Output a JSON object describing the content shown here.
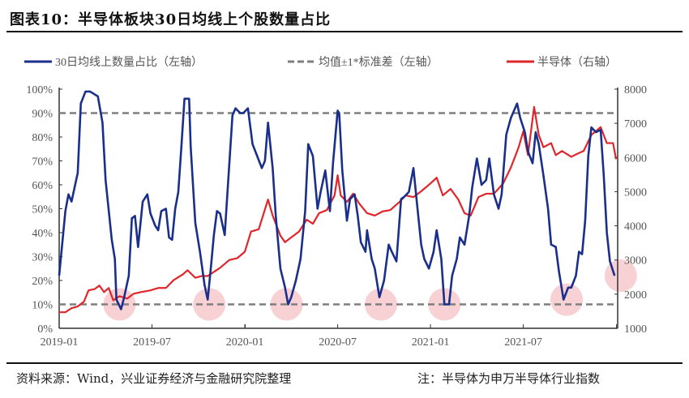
{
  "title": "图表10：半导体板块30日均线上个股数量占比",
  "footer": {
    "source": "资料来源：Wind，兴业证券经济与金融研究院整理",
    "note": "注：半导体为申万半导体行业指数"
  },
  "chart_data": {
    "type": "line",
    "title": "半导体板块30日均线上个股数量占比",
    "x_unit": "months since 2019-01",
    "xlim": [
      0,
      36.1
    ],
    "x_ticks": [
      {
        "v": 0,
        "label": "2019-01"
      },
      {
        "v": 6,
        "label": "2019-07"
      },
      {
        "v": 12,
        "label": "2020-01"
      },
      {
        "v": 18,
        "label": "2020-07"
      },
      {
        "v": 24,
        "label": "2021-01"
      },
      {
        "v": 30,
        "label": "2021-07"
      }
    ],
    "y_left": {
      "lim": [
        0,
        100
      ],
      "ticks": [
        "0%",
        "10%",
        "20%",
        "30%",
        "40%",
        "50%",
        "60%",
        "70%",
        "80%",
        "90%",
        "100%"
      ]
    },
    "y_right": {
      "lim": [
        1000,
        8000
      ],
      "ticks": [
        "1000",
        "2000",
        "3000",
        "4000",
        "5000",
        "6000",
        "7000",
        "8000"
      ]
    },
    "legend_position": "top",
    "series": [
      {
        "name": "30日均线上数量占比（左轴）",
        "axis": "left",
        "color": "#1a2f8a",
        "style": "solid",
        "points": [
          [
            0,
            22
          ],
          [
            0.4,
            49
          ],
          [
            0.6,
            56
          ],
          [
            0.8,
            53
          ],
          [
            1.2,
            65
          ],
          [
            1.4,
            94
          ],
          [
            1.7,
            99
          ],
          [
            2.0,
            99
          ],
          [
            2.5,
            97
          ],
          [
            2.8,
            86
          ],
          [
            3.0,
            62
          ],
          [
            3.4,
            37
          ],
          [
            3.6,
            29
          ],
          [
            3.7,
            12
          ],
          [
            4.0,
            8
          ],
          [
            4.2,
            13
          ],
          [
            4.5,
            22
          ],
          [
            4.7,
            46
          ],
          [
            4.9,
            47
          ],
          [
            5.1,
            34
          ],
          [
            5.4,
            53
          ],
          [
            5.7,
            56
          ],
          [
            5.9,
            48
          ],
          [
            6.2,
            43
          ],
          [
            6.4,
            41
          ],
          [
            6.6,
            49
          ],
          [
            6.9,
            50
          ],
          [
            7.1,
            38
          ],
          [
            7.3,
            37
          ],
          [
            7.5,
            50
          ],
          [
            7.7,
            57
          ],
          [
            7.9,
            76
          ],
          [
            8.1,
            96
          ],
          [
            8.4,
            96
          ],
          [
            8.5,
            76
          ],
          [
            8.8,
            44
          ],
          [
            9.1,
            32
          ],
          [
            9.4,
            18
          ],
          [
            9.6,
            12
          ],
          [
            9.8,
            25
          ],
          [
            10.0,
            39
          ],
          [
            10.2,
            49
          ],
          [
            10.4,
            48
          ],
          [
            10.7,
            39
          ],
          [
            11.0,
            69
          ],
          [
            11.2,
            89
          ],
          [
            11.4,
            92
          ],
          [
            11.7,
            90
          ],
          [
            11.9,
            90
          ],
          [
            12.2,
            92
          ],
          [
            12.5,
            77
          ],
          [
            12.8,
            72
          ],
          [
            13.1,
            67
          ],
          [
            13.3,
            70
          ],
          [
            13.5,
            86
          ],
          [
            13.8,
            67
          ],
          [
            14.0,
            47
          ],
          [
            14.3,
            25
          ],
          [
            14.6,
            17
          ],
          [
            14.8,
            10
          ],
          [
            15.0,
            13
          ],
          [
            15.3,
            20
          ],
          [
            15.6,
            29
          ],
          [
            15.9,
            49
          ],
          [
            16.1,
            77
          ],
          [
            16.4,
            72
          ],
          [
            16.7,
            50
          ],
          [
            16.9,
            57
          ],
          [
            17.2,
            66
          ],
          [
            17.5,
            49
          ],
          [
            17.7,
            69
          ],
          [
            18.0,
            91
          ],
          [
            18.1,
            90
          ],
          [
            18.3,
            66
          ],
          [
            18.6,
            45
          ],
          [
            18.8,
            54
          ],
          [
            19.1,
            56
          ],
          [
            19.3,
            47
          ],
          [
            19.5,
            36
          ],
          [
            19.8,
            32
          ],
          [
            19.9,
            41
          ],
          [
            20.2,
            29
          ],
          [
            20.4,
            25
          ],
          [
            20.7,
            13
          ],
          [
            21.0,
            20
          ],
          [
            21.3,
            35
          ],
          [
            21.5,
            32
          ],
          [
            21.8,
            28
          ],
          [
            22.1,
            54
          ],
          [
            22.3,
            55
          ],
          [
            22.6,
            57
          ],
          [
            22.9,
            67
          ],
          [
            23.1,
            54
          ],
          [
            23.4,
            35
          ],
          [
            23.6,
            29
          ],
          [
            23.9,
            25
          ],
          [
            24.2,
            32
          ],
          [
            24.4,
            41
          ],
          [
            24.7,
            29
          ],
          [
            24.9,
            10
          ],
          [
            25.2,
            10
          ],
          [
            25.4,
            22
          ],
          [
            25.7,
            29
          ],
          [
            25.9,
            38
          ],
          [
            26.2,
            35
          ],
          [
            26.5,
            47
          ],
          [
            26.7,
            59
          ],
          [
            27.0,
            71
          ],
          [
            27.3,
            60
          ],
          [
            27.6,
            62
          ],
          [
            27.8,
            71
          ],
          [
            28.1,
            56
          ],
          [
            28.4,
            50
          ],
          [
            28.6,
            56
          ],
          [
            28.9,
            81
          ],
          [
            29.2,
            88
          ],
          [
            29.6,
            94
          ],
          [
            29.8,
            88
          ],
          [
            30.1,
            82
          ],
          [
            30.3,
            74
          ],
          [
            30.6,
            69
          ],
          [
            30.8,
            82
          ],
          [
            31.0,
            77
          ],
          [
            31.3,
            64
          ],
          [
            31.6,
            50
          ],
          [
            31.8,
            35
          ],
          [
            32.1,
            34
          ],
          [
            32.3,
            24
          ],
          [
            32.6,
            12
          ],
          [
            32.9,
            17
          ],
          [
            33.1,
            17
          ],
          [
            33.4,
            22
          ],
          [
            33.6,
            32
          ],
          [
            33.8,
            31
          ],
          [
            34.0,
            45
          ],
          [
            34.2,
            72
          ],
          [
            34.4,
            84
          ],
          [
            34.7,
            82
          ],
          [
            35.0,
            83
          ],
          [
            35.2,
            64
          ],
          [
            35.4,
            40
          ],
          [
            35.6,
            28
          ],
          [
            35.9,
            22
          ]
        ]
      },
      {
        "name": "均值±1*标准差（左轴）",
        "axis": "left",
        "color": "#7f7f7f",
        "style": "dashed",
        "values": [
          90,
          10
        ]
      },
      {
        "name": "半导体（右轴）",
        "axis": "right",
        "color": "#e0262b",
        "style": "solid",
        "points": [
          [
            0,
            1470
          ],
          [
            0.4,
            1470
          ],
          [
            0.8,
            1590
          ],
          [
            1.2,
            1640
          ],
          [
            1.6,
            1780
          ],
          [
            1.9,
            2110
          ],
          [
            2.3,
            2150
          ],
          [
            2.6,
            2250
          ],
          [
            2.9,
            2060
          ],
          [
            3.2,
            2180
          ],
          [
            3.5,
            1820
          ],
          [
            3.9,
            1940
          ],
          [
            4.4,
            1870
          ],
          [
            4.8,
            2010
          ],
          [
            5.3,
            2060
          ],
          [
            5.9,
            2110
          ],
          [
            6.4,
            2180
          ],
          [
            6.9,
            2180
          ],
          [
            7.4,
            2410
          ],
          [
            8.0,
            2580
          ],
          [
            8.3,
            2700
          ],
          [
            8.8,
            2480
          ],
          [
            9.2,
            2530
          ],
          [
            9.6,
            2530
          ],
          [
            10.0,
            2650
          ],
          [
            10.4,
            2770
          ],
          [
            11.0,
            3000
          ],
          [
            11.5,
            3050
          ],
          [
            12.0,
            3240
          ],
          [
            12.4,
            3830
          ],
          [
            12.9,
            3900
          ],
          [
            13.5,
            4770
          ],
          [
            13.8,
            4300
          ],
          [
            14.3,
            3710
          ],
          [
            14.6,
            3520
          ],
          [
            15.0,
            3660
          ],
          [
            15.5,
            3830
          ],
          [
            16.0,
            4180
          ],
          [
            16.4,
            4060
          ],
          [
            16.8,
            4370
          ],
          [
            17.3,
            4460
          ],
          [
            17.8,
            4890
          ],
          [
            18.0,
            5480
          ],
          [
            18.2,
            4890
          ],
          [
            18.6,
            4700
          ],
          [
            19.0,
            4940
          ],
          [
            19.4,
            4650
          ],
          [
            19.9,
            4370
          ],
          [
            20.4,
            4300
          ],
          [
            20.9,
            4420
          ],
          [
            21.4,
            4460
          ],
          [
            22.0,
            4700
          ],
          [
            22.4,
            4890
          ],
          [
            22.9,
            4840
          ],
          [
            23.4,
            5010
          ],
          [
            24.0,
            5240
          ],
          [
            24.4,
            5410
          ],
          [
            24.8,
            4890
          ],
          [
            25.3,
            5080
          ],
          [
            25.8,
            4770
          ],
          [
            26.2,
            4370
          ],
          [
            26.6,
            4300
          ],
          [
            27.1,
            4840
          ],
          [
            27.6,
            4940
          ],
          [
            28.1,
            4940
          ],
          [
            28.7,
            5240
          ],
          [
            29.2,
            5710
          ],
          [
            29.7,
            6300
          ],
          [
            30.0,
            6770
          ],
          [
            30.3,
            6070
          ],
          [
            30.7,
            7480
          ],
          [
            31.0,
            6660
          ],
          [
            31.3,
            6300
          ],
          [
            31.8,
            6420
          ],
          [
            32.1,
            6070
          ],
          [
            32.5,
            6190
          ],
          [
            33.1,
            6020
          ],
          [
            33.5,
            6110
          ],
          [
            33.9,
            6190
          ],
          [
            34.4,
            6660
          ],
          [
            35.0,
            6890
          ],
          [
            35.4,
            6420
          ],
          [
            35.8,
            6420
          ],
          [
            36.0,
            5950
          ]
        ]
      }
    ],
    "highlights": {
      "color": "#f6c9cc",
      "points": [
        [
          3.9,
          10
        ],
        [
          9.7,
          10
        ],
        [
          14.7,
          10
        ],
        [
          20.8,
          10
        ],
        [
          24.9,
          10
        ],
        [
          32.8,
          12
        ],
        [
          36.3,
          22
        ]
      ]
    }
  }
}
